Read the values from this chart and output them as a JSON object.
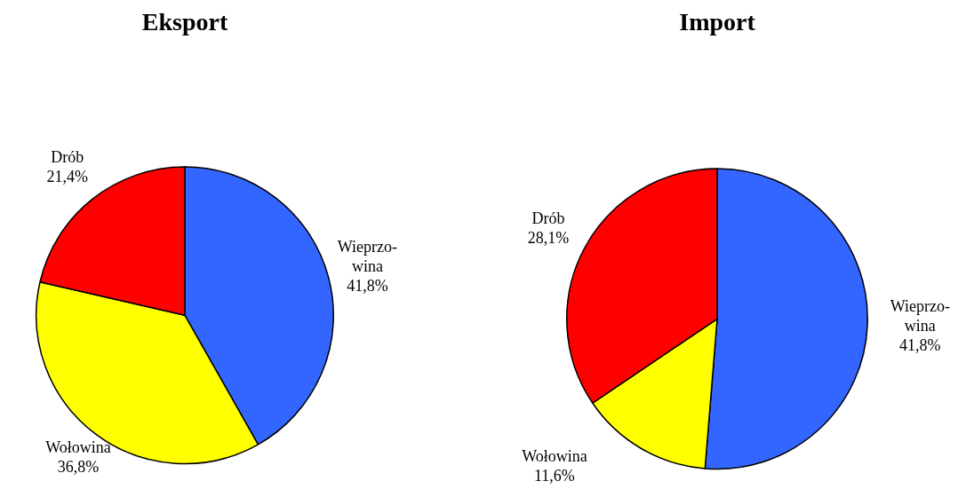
{
  "chart_data": [
    {
      "type": "pie",
      "title": "Eksport",
      "categories": [
        "Wieprzo-wina",
        "Wołowina",
        "Drób"
      ],
      "values": [
        41.8,
        36.8,
        21.4
      ],
      "colors": [
        "#3366ff",
        "#ffff00",
        "#ff0000"
      ],
      "value_labels": [
        "41,8%",
        "36,8%",
        "21,4%"
      ],
      "legend": false
    },
    {
      "type": "pie",
      "title": "Import",
      "categories": [
        "Wieprzo-wina",
        "Wołowina",
        "Drób"
      ],
      "values": [
        41.8,
        11.6,
        28.1
      ],
      "colors": [
        "#3366ff",
        "#ffff00",
        "#ff0000"
      ],
      "value_labels": [
        "41,8%",
        "11,6%",
        "28,1%"
      ],
      "legend": false
    }
  ]
}
